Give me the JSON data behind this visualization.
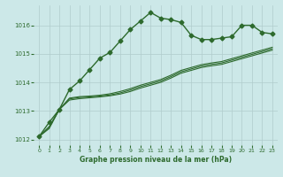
{
  "title": "Graphe pression niveau de la mer (hPa)",
  "background_color": "#cce8e8",
  "grid_color": "#b0cccc",
  "line_color": "#2d6a2d",
  "xlim": [
    -0.5,
    23.5
  ],
  "ylim": [
    1011.8,
    1016.7
  ],
  "yticks": [
    1012,
    1013,
    1014,
    1015,
    1016
  ],
  "xticks": [
    0,
    1,
    2,
    3,
    4,
    5,
    6,
    7,
    8,
    9,
    10,
    11,
    12,
    13,
    14,
    15,
    16,
    17,
    18,
    19,
    20,
    21,
    22,
    23
  ],
  "series": [
    {
      "x": [
        0,
        1,
        2,
        3,
        4,
        5,
        6,
        7,
        8,
        9,
        10,
        11,
        12,
        13,
        14,
        15,
        16,
        17,
        18,
        19,
        20,
        21,
        22,
        23
      ],
      "y": [
        1012.1,
        1012.6,
        1013.05,
        1013.75,
        1014.05,
        1014.45,
        1014.85,
        1015.05,
        1015.45,
        1015.85,
        1016.15,
        1016.45,
        1016.25,
        1016.2,
        1016.1,
        1015.65,
        1015.5,
        1015.5,
        1015.55,
        1015.6,
        1016.0,
        1016.0,
        1015.75,
        1015.7
      ],
      "marker": "D",
      "markersize": 2.5,
      "linewidth": 1.0
    },
    {
      "x": [
        0,
        1,
        2,
        3,
        4,
        5,
        6,
        7,
        8,
        9,
        10,
        11,
        12,
        13,
        14,
        15,
        16,
        17,
        18,
        19,
        20,
        21,
        22,
        23
      ],
      "y": [
        1012.1,
        1012.45,
        1013.05,
        1013.45,
        1013.5,
        1013.52,
        1013.55,
        1013.6,
        1013.68,
        1013.78,
        1013.9,
        1014.0,
        1014.1,
        1014.25,
        1014.42,
        1014.52,
        1014.62,
        1014.68,
        1014.73,
        1014.83,
        1014.93,
        1015.03,
        1015.13,
        1015.23
      ],
      "marker": null,
      "markersize": 0,
      "linewidth": 0.8
    },
    {
      "x": [
        0,
        1,
        2,
        3,
        4,
        5,
        6,
        7,
        8,
        9,
        10,
        11,
        12,
        13,
        14,
        15,
        16,
        17,
        18,
        19,
        20,
        21,
        22,
        23
      ],
      "y": [
        1012.1,
        1012.42,
        1013.05,
        1013.42,
        1013.47,
        1013.49,
        1013.52,
        1013.56,
        1013.63,
        1013.73,
        1013.85,
        1013.95,
        1014.05,
        1014.2,
        1014.37,
        1014.47,
        1014.57,
        1014.63,
        1014.68,
        1014.78,
        1014.88,
        1014.98,
        1015.08,
        1015.18
      ],
      "marker": null,
      "markersize": 0,
      "linewidth": 0.8
    },
    {
      "x": [
        0,
        1,
        2,
        3,
        4,
        5,
        6,
        7,
        8,
        9,
        10,
        11,
        12,
        13,
        14,
        15,
        16,
        17,
        18,
        19,
        20,
        21,
        22,
        23
      ],
      "y": [
        1012.1,
        1012.38,
        1013.05,
        1013.38,
        1013.43,
        1013.46,
        1013.49,
        1013.53,
        1013.59,
        1013.68,
        1013.8,
        1013.9,
        1014.0,
        1014.15,
        1014.32,
        1014.42,
        1014.52,
        1014.58,
        1014.63,
        1014.73,
        1014.83,
        1014.93,
        1015.03,
        1015.13
      ],
      "marker": null,
      "markersize": 0,
      "linewidth": 0.8
    }
  ]
}
